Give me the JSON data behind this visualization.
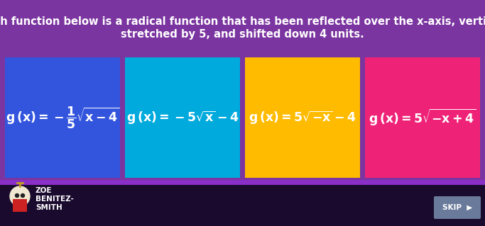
{
  "title_line1": "Which function below is a radical function that has been reflected over the x-axis, vertically",
  "title_line2": "stretched by 5, and shifted down 4 units.",
  "bg_color": "#7B35A0",
  "footer_bg_color": "#1A0A2E",
  "border_color": "#8B2FC9",
  "cards": [
    {
      "color": "#3355DD",
      "latex": "$\\mathbf{g\\,(x) = -\\dfrac{1}{5}\\sqrt{x-4}}$"
    },
    {
      "color": "#00AADD",
      "latex": "$\\mathbf{g\\,(x) = -5\\sqrt{x} - 4}$"
    },
    {
      "color": "#FFBB00",
      "latex": "$\\mathbf{g\\,(x) = 5\\sqrt{-x} - 4}$"
    },
    {
      "color": "#EE2277",
      "latex": "$\\mathbf{g\\,(x) = 5\\sqrt{-x+4}}$"
    }
  ],
  "title_color": "#FFFFFF",
  "title_fontsize": 10.5,
  "card_text_color": "#FFFFFF",
  "card_fontsize": 12.5,
  "footer_text_color": "#FFFFFF",
  "footer_fontsize": 7.5,
  "skip_bg": "#6A7A9A",
  "skip_text": "SKIP  ▶",
  "skip_fontsize": 7.5
}
